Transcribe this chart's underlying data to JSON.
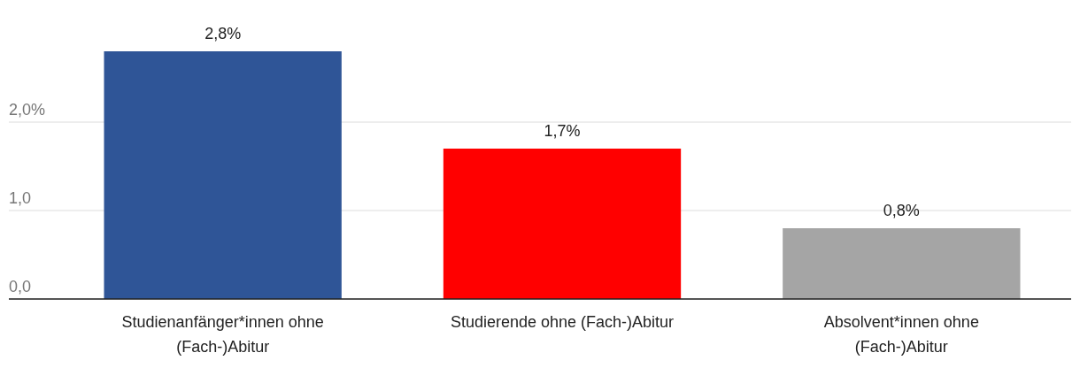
{
  "chart_data": {
    "type": "bar",
    "categories": [
      "Studienanfänger*innen ohne (Fach-)Abitur",
      "Studierende ohne (Fach-)Abitur",
      "Absolvent*innen ohne (Fach-)Abitur"
    ],
    "values": [
      2.8,
      1.7,
      0.8
    ],
    "colors": [
      "#2f5597",
      "#ff0000",
      "#a5a5a5"
    ],
    "value_labels": [
      "2,8%",
      "1,7%",
      "0,8%"
    ],
    "ylim": [
      0,
      2.8
    ],
    "yticks": [
      {
        "value": 0,
        "label": "0,0"
      },
      {
        "value": 1,
        "label": "1,0"
      },
      {
        "value": 2,
        "label": "2,0%"
      }
    ],
    "grid": "y"
  }
}
